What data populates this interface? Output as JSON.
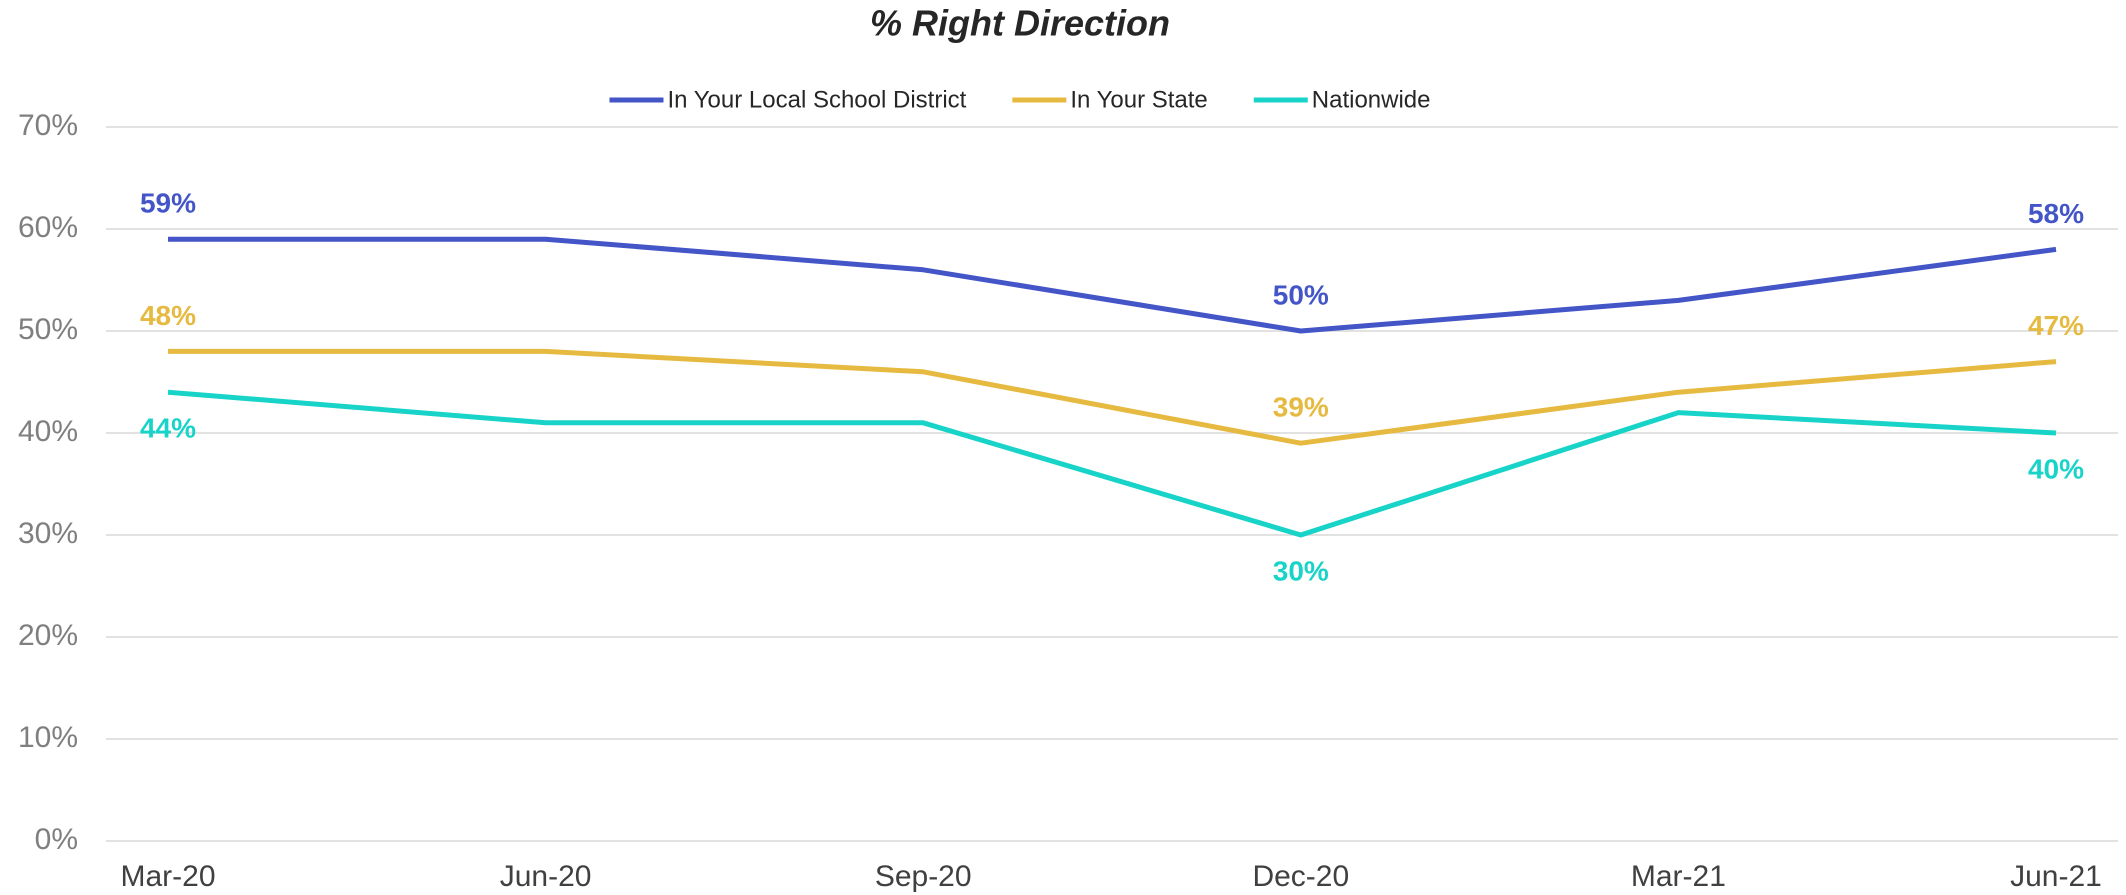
{
  "chart_data": {
    "type": "line",
    "title": "% Right Direction",
    "categories": [
      "Mar-20",
      "Jun-20",
      "Sep-20",
      "Dec-20",
      "Mar-21",
      "Jun-21"
    ],
    "series": [
      {
        "name": "In Your Local School District",
        "color": "#4355c7",
        "values": [
          59,
          59,
          56,
          50,
          53,
          58
        ],
        "value_labels": [
          "59%",
          null,
          null,
          "50%",
          null,
          "58%"
        ]
      },
      {
        "name": "In Your State",
        "color": "#e6b940",
        "values": [
          48,
          48,
          46,
          39,
          44,
          47
        ],
        "value_labels": [
          "48%",
          null,
          null,
          "39%",
          null,
          "47%"
        ]
      },
      {
        "name": "Nationwide",
        "color": "#18d3c8",
        "values": [
          44,
          41,
          41,
          30,
          42,
          40
        ],
        "value_labels": [
          "44%",
          null,
          null,
          "30%",
          null,
          "40%"
        ]
      }
    ],
    "ylim": [
      0,
      70
    ],
    "yticks": [
      {
        "value": 0,
        "label": "0%"
      },
      {
        "value": 10,
        "label": "10%"
      },
      {
        "value": 20,
        "label": "20%"
      },
      {
        "value": 30,
        "label": "30%"
      },
      {
        "value": 40,
        "label": "40%"
      },
      {
        "value": 50,
        "label": "50%"
      },
      {
        "value": 60,
        "label": "60%"
      },
      {
        "value": 70,
        "label": "70%"
      }
    ],
    "grid": true,
    "legend": "top"
  }
}
